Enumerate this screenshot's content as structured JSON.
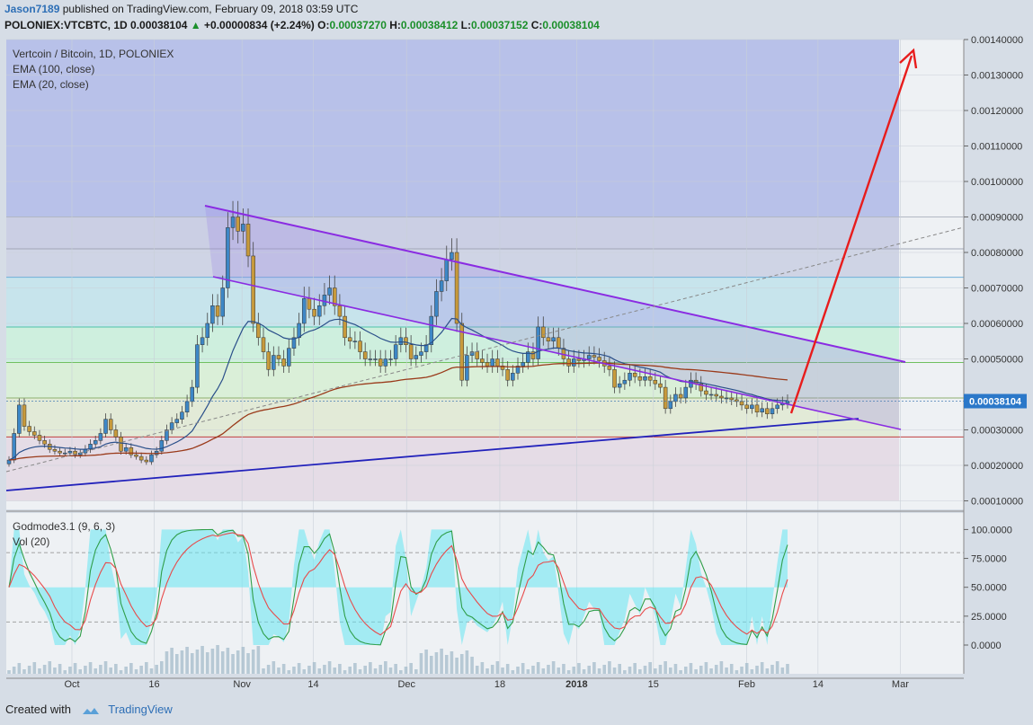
{
  "header": {
    "user": "Jason7189",
    "published_text": "published on TradingView.com, February 09, 2018 03:59 UTC",
    "symbol": "POLONIEX:VTCBTC, 1D",
    "last": "0.00038104",
    "change": "+0.00000834 (+2.24%)",
    "open_label": "O:",
    "open": "0.00037270",
    "high_label": "H:",
    "high": "0.00038412",
    "low_label": "L:",
    "low": "0.00037152",
    "close_label": "C:",
    "close": "0.00038104"
  },
  "legend": {
    "title": "Vertcoin / Bitcoin, 1D, POLONIEX",
    "ema100": "EMA (100, close)",
    "ema20": "EMA (20, close)",
    "osc_name": "Godmode3.1 (9, 6, 3)",
    "vol_name": "Vol (20)"
  },
  "footer": {
    "created_with": "Created with",
    "brand": "TradingView"
  },
  "colors": {
    "bull": "#3d87c6",
    "bear": "#c79a3c",
    "ema100": "#9a3a1a",
    "ema20": "#2a4f8a",
    "wedge_top": "#8a2be2",
    "wedge_bottom": "#2222bb",
    "projection": "#e81c1c",
    "osc_fill": "#66e6f2",
    "osc_green": "#2f9e49",
    "osc_red": "#e84a4a"
  },
  "chart_data": [
    {
      "type": "candlestick",
      "title": "Vertcoin / Bitcoin, 1D, POLONIEX",
      "ylim": [
        0.0001,
        0.0014
      ],
      "y_ticks": [
        "0.00140000",
        "0.00130000",
        "0.00120000",
        "0.00110000",
        "0.00100000",
        "0.00090000",
        "0.00080000",
        "0.00070000",
        "0.00060000",
        "0.00050000",
        "0.00030000",
        "0.00020000",
        "0.00010000"
      ],
      "y_tick_values": [
        0.0014,
        0.0013,
        0.0012,
        0.0011,
        0.001,
        0.0009,
        0.0008,
        0.0007,
        0.0006,
        0.0005,
        0.0003,
        0.0002,
        0.0001
      ],
      "x_ticks": [
        "Oct",
        "16",
        "Nov",
        "14",
        "Dec",
        "18",
        "2018",
        "15",
        "Feb",
        "14",
        "Mar"
      ],
      "x_tick_dates": [
        "2017-10-01",
        "2017-10-16",
        "2017-11-01",
        "2017-11-14",
        "2017-12-01",
        "2017-12-18",
        "2018-01-01",
        "2018-01-15",
        "2018-02-01",
        "2018-02-14",
        "2018-03-01"
      ],
      "last_price_label": "0.00038104",
      "closes": [
        0.000215,
        0.00029,
        0.00037,
        0.00031,
        0.000295,
        0.000285,
        0.00027,
        0.00026,
        0.000245,
        0.00024,
        0.000235,
        0.000235,
        0.00024,
        0.00023,
        0.000235,
        0.000245,
        0.00026,
        0.00027,
        0.00029,
        0.00033,
        0.0003,
        0.00028,
        0.00024,
        0.00025,
        0.00023,
        0.000225,
        0.000215,
        0.00021,
        0.00023,
        0.00024,
        0.00027,
        0.0003,
        0.00032,
        0.00033,
        0.00035,
        0.00038,
        0.00042,
        0.00054,
        0.00056,
        0.0006,
        0.00065,
        0.00062,
        0.0007,
        0.00087,
        0.0009,
        0.00086,
        0.00088,
        0.00079,
        0.0006,
        0.00056,
        0.00052,
        0.00047,
        0.00051,
        0.0005,
        0.00048,
        0.00053,
        0.00056,
        0.0006,
        0.00067,
        0.00064,
        0.00062,
        0.00065,
        0.00068,
        0.0007,
        0.00065,
        0.00062,
        0.00056,
        0.00055,
        0.00055,
        0.00052,
        0.0005,
        0.0005,
        0.0005,
        0.00048,
        0.0005,
        0.0005,
        0.00054,
        0.00056,
        0.00054,
        0.0005,
        0.00051,
        0.00052,
        0.00054,
        0.00062,
        0.00069,
        0.00072,
        0.00078,
        0.0008,
        0.0006,
        0.00044,
        0.00051,
        0.00052,
        0.0005,
        0.00049,
        0.00048,
        0.0005,
        0.00048,
        0.00047,
        0.00044,
        0.00046,
        0.00048,
        0.00049,
        0.00052,
        0.0005,
        0.00059,
        0.00056,
        0.00055,
        0.00056,
        0.00053,
        0.0005,
        0.00048,
        0.0005,
        0.000495,
        0.0005,
        0.00051,
        0.000505,
        0.000495,
        0.00048,
        0.00047,
        0.00042,
        0.00043,
        0.00044,
        0.00046,
        0.00045,
        0.00044,
        0.00045,
        0.00044,
        0.00043,
        0.00042,
        0.00036,
        0.00038,
        0.0004,
        0.00039,
        0.00042,
        0.00044,
        0.00043,
        0.00041,
        0.0004,
        0.0004,
        0.000395,
        0.00039,
        0.00039,
        0.000385,
        0.00038,
        0.00037,
        0.00036,
        0.00037,
        0.00035,
        0.00036,
        0.000345,
        0.00036,
        0.00037,
        0.000375,
        0.000381
      ]
    },
    {
      "type": "line",
      "title": "Godmode3.1 (9, 6, 3)",
      "ylim": [
        -20,
        110
      ],
      "y_ticks": [
        "100.0000",
        "75.0000",
        "50.0000",
        "25.0000",
        "0.0000"
      ],
      "y_tick_values": [
        100,
        75,
        50,
        25,
        0
      ],
      "levels": [
        80,
        20
      ]
    }
  ]
}
